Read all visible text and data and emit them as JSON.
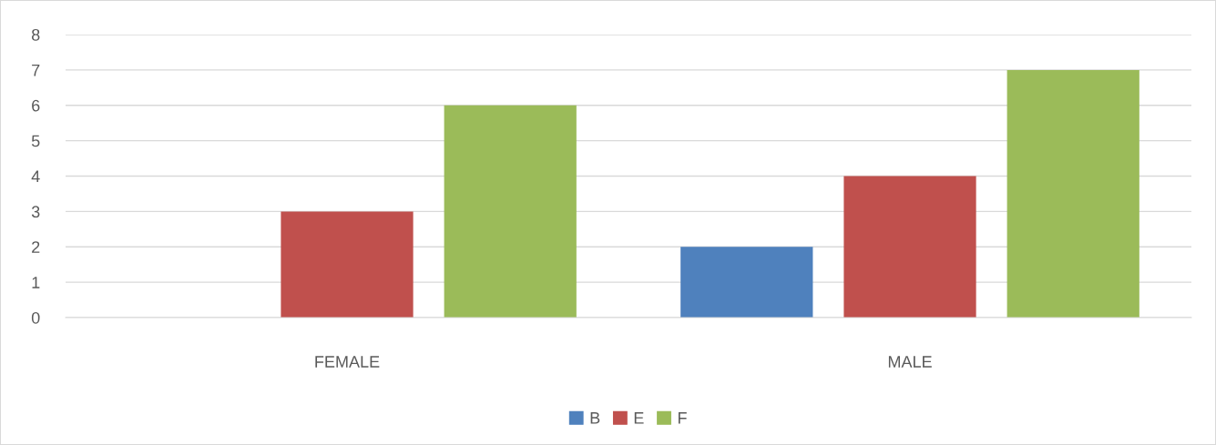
{
  "chart_data": {
    "type": "bar",
    "categories": [
      "FEMALE",
      "MALE"
    ],
    "series": [
      {
        "name": "B",
        "color": "#4f81bd",
        "values": [
          0,
          2
        ]
      },
      {
        "name": "E",
        "color": "#c0504d",
        "values": [
          3,
          4
        ]
      },
      {
        "name": "F",
        "color": "#9bbb59",
        "values": [
          6,
          7
        ]
      }
    ],
    "ylim": [
      0,
      8
    ],
    "yticks": [
      0,
      1,
      2,
      3,
      4,
      5,
      6,
      7,
      8
    ],
    "grid": "y",
    "legend": "bottom"
  }
}
